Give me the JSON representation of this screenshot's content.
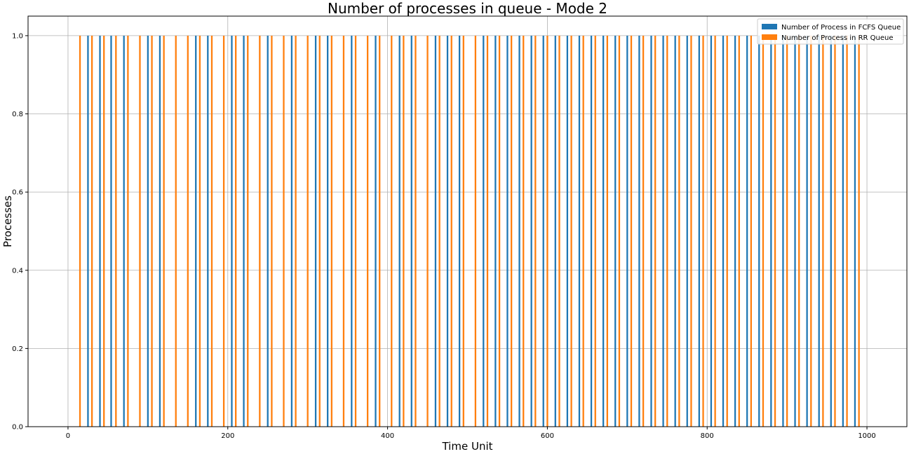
{
  "chart_data": {
    "type": "bar",
    "title": "Number of processes in queue - Mode 2",
    "xlabel": "Time Unit",
    "ylabel": "Processes",
    "xlim": [
      -50,
      1050
    ],
    "ylim": [
      0,
      1.05
    ],
    "xticks": [
      0,
      200,
      400,
      600,
      800,
      1000
    ],
    "xtick_labels": [
      "0",
      "200",
      "400",
      "600",
      "800",
      "1000"
    ],
    "yticks": [
      0.0,
      0.2,
      0.4,
      0.6,
      0.8,
      1.0
    ],
    "ytick_labels": [
      "0.0",
      "0.2",
      "0.4",
      "0.6",
      "0.8",
      "1.0"
    ],
    "grid": true,
    "legend_position": "top-right",
    "bar_width": 2,
    "series": [
      {
        "name": "Number of Process in FCFS Queue",
        "color": "#1f77b4",
        "x": [
          25,
          40,
          54,
          70,
          100,
          115,
          160,
          175,
          205,
          220,
          250,
          280,
          310,
          325,
          355,
          385,
          415,
          430,
          460,
          475,
          490,
          520,
          535,
          550,
          565,
          580,
          595,
          610,
          625,
          640,
          655,
          670,
          685,
          700,
          715,
          730,
          745,
          760,
          775,
          790,
          805,
          820,
          835,
          850,
          865,
          880,
          895,
          910,
          925,
          940,
          955,
          970,
          985
        ],
        "values": [
          1,
          1,
          1,
          1,
          1,
          1,
          1,
          1,
          1,
          1,
          1,
          1,
          1,
          1,
          1,
          1,
          1,
          1,
          1,
          1,
          1,
          1,
          1,
          1,
          1,
          1,
          1,
          1,
          1,
          1,
          1,
          1,
          1,
          1,
          1,
          1,
          1,
          1,
          1,
          1,
          1,
          1,
          1,
          1,
          1,
          1,
          1,
          1,
          1,
          1,
          1,
          1,
          1
        ]
      },
      {
        "name": "Number of Process in RR Queue",
        "color": "#ff7f0e",
        "x": [
          15,
          30,
          45,
          60,
          75,
          90,
          105,
          120,
          135,
          150,
          165,
          180,
          195,
          210,
          225,
          240,
          255,
          270,
          285,
          300,
          315,
          330,
          345,
          360,
          375,
          390,
          405,
          420,
          435,
          450,
          465,
          480,
          495,
          510,
          525,
          540,
          555,
          570,
          585,
          600,
          615,
          630,
          645,
          660,
          675,
          690,
          705,
          720,
          735,
          750,
          765,
          780,
          795,
          810,
          825,
          840,
          855,
          870,
          885,
          900,
          915,
          930,
          945,
          960,
          975,
          990
        ],
        "values": [
          1,
          1,
          1,
          1,
          1,
          1,
          1,
          1,
          1,
          1,
          1,
          1,
          1,
          1,
          1,
          1,
          1,
          1,
          1,
          1,
          1,
          1,
          1,
          1,
          1,
          1,
          1,
          1,
          1,
          1,
          1,
          1,
          1,
          1,
          1,
          1,
          1,
          1,
          1,
          1,
          1,
          1,
          1,
          1,
          1,
          1,
          1,
          1,
          1,
          1,
          1,
          1,
          1,
          1,
          1,
          1,
          1,
          1,
          1,
          1,
          1,
          1,
          1,
          1,
          1,
          1
        ]
      }
    ]
  }
}
